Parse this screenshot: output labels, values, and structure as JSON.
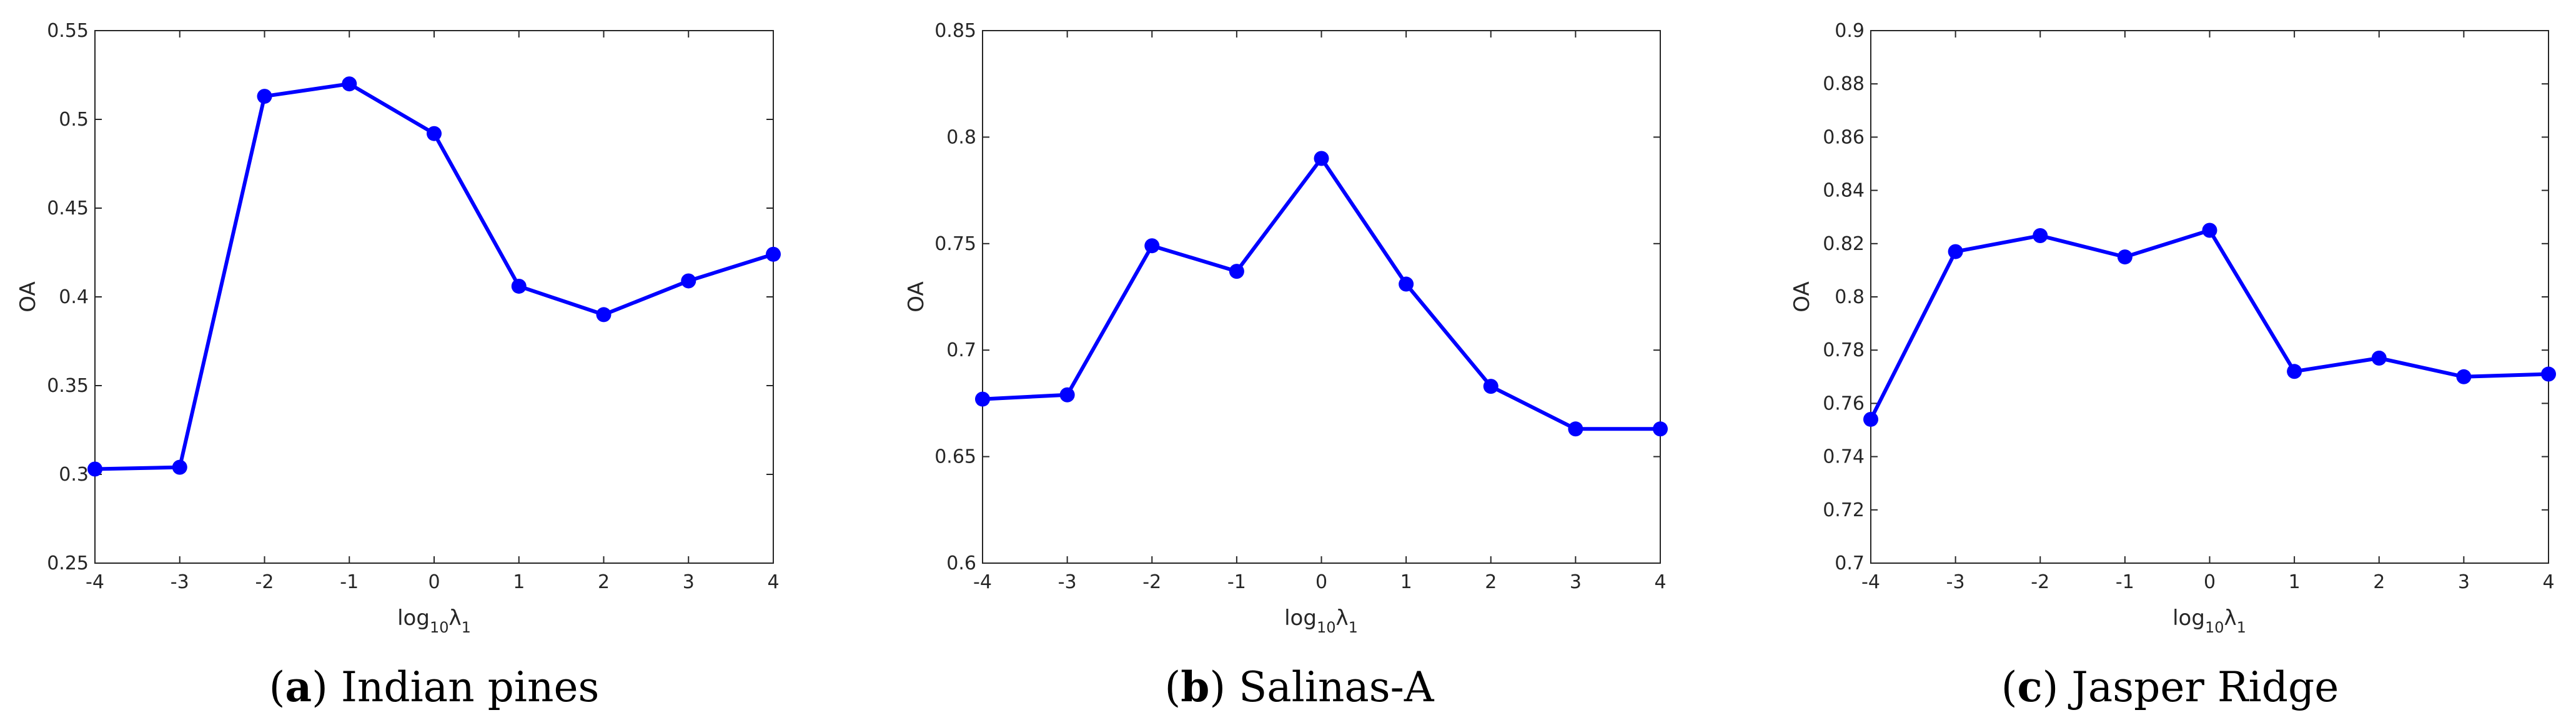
{
  "chart_data": [
    {
      "type": "line",
      "panel": "a",
      "title": "Indian pines",
      "xlabel": "log10λ1",
      "ylabel": "OA",
      "x": [
        -4,
        -3,
        -2,
        -1,
        0,
        1,
        2,
        3,
        4
      ],
      "series": [
        {
          "name": "OA",
          "color": "#0000ff",
          "values": [
            0.303,
            0.304,
            0.513,
            0.52,
            0.492,
            0.406,
            0.39,
            0.409,
            0.424
          ]
        }
      ],
      "xlim": [
        -4,
        4
      ],
      "ylim": [
        0.25,
        0.55
      ],
      "xticks": [
        -4,
        -3,
        -2,
        -1,
        0,
        1,
        2,
        3,
        4
      ],
      "xtick_labels": [
        "-4",
        "-3",
        "-2",
        "-1",
        "0",
        "1",
        "2",
        "3",
        "4"
      ],
      "yticks": [
        0.25,
        0.3,
        0.35,
        0.4,
        0.45,
        0.5,
        0.55
      ],
      "ytick_labels": [
        "0.25",
        "0.3",
        "0.35",
        "0.4",
        "0.45",
        "0.5",
        "0.55"
      ],
      "grid": false,
      "caption_letter": "a",
      "caption_text": "Indian pines"
    },
    {
      "type": "line",
      "panel": "b",
      "title": "Salinas-A",
      "xlabel": "log10λ1",
      "ylabel": "OA",
      "x": [
        -4,
        -3,
        -2,
        -1,
        0,
        1,
        2,
        3,
        4
      ],
      "series": [
        {
          "name": "OA",
          "color": "#0000ff",
          "values": [
            0.677,
            0.679,
            0.749,
            0.737,
            0.79,
            0.731,
            0.683,
            0.663,
            0.663
          ]
        }
      ],
      "xlim": [
        -4,
        4
      ],
      "ylim": [
        0.6,
        0.85
      ],
      "xticks": [
        -4,
        -3,
        -2,
        -1,
        0,
        1,
        2,
        3,
        4
      ],
      "xtick_labels": [
        "-4",
        "-3",
        "-2",
        "-1",
        "0",
        "1",
        "2",
        "3",
        "4"
      ],
      "yticks": [
        0.6,
        0.65,
        0.7,
        0.75,
        0.8,
        0.85
      ],
      "ytick_labels": [
        "0.6",
        "0.65",
        "0.7",
        "0.75",
        "0.8",
        "0.85"
      ],
      "grid": false,
      "caption_letter": "b",
      "caption_text": "Salinas-A"
    },
    {
      "type": "line",
      "panel": "c",
      "title": "Jasper Ridge",
      "xlabel": "log10λ1",
      "ylabel": "OA",
      "x": [
        -4,
        -3,
        -2,
        -1,
        0,
        1,
        2,
        3,
        4
      ],
      "series": [
        {
          "name": "OA",
          "color": "#0000ff",
          "values": [
            0.754,
            0.817,
            0.823,
            0.815,
            0.825,
            0.772,
            0.777,
            0.77,
            0.771
          ]
        }
      ],
      "xlim": [
        -4,
        4
      ],
      "ylim": [
        0.7,
        0.9
      ],
      "xticks": [
        -4,
        -3,
        -2,
        -1,
        0,
        1,
        2,
        3,
        4
      ],
      "xtick_labels": [
        "-4",
        "-3",
        "-2",
        "-1",
        "0",
        "1",
        "2",
        "3",
        "4"
      ],
      "yticks": [
        0.7,
        0.72,
        0.74,
        0.76,
        0.78,
        0.8,
        0.82,
        0.84,
        0.86,
        0.88,
        0.9
      ],
      "ytick_labels": [
        "0.7",
        "0.72",
        "0.74",
        "0.76",
        "0.78",
        "0.8",
        "0.82",
        "0.84",
        "0.86",
        "0.88",
        "0.9"
      ],
      "grid": false,
      "caption_letter": "c",
      "caption_text": "Jasper Ridge"
    }
  ]
}
